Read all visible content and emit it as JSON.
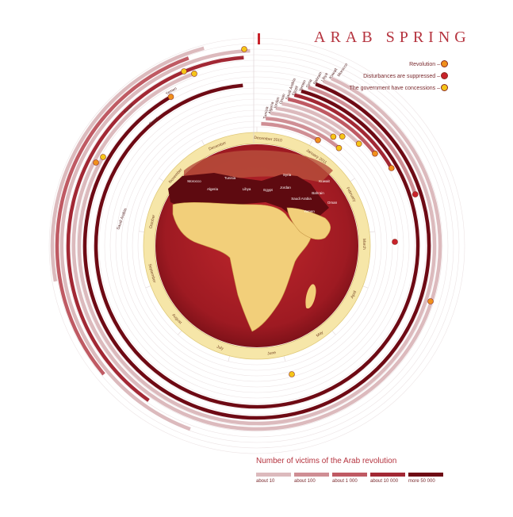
{
  "title": "ARAB SPRING",
  "legend": {
    "revolution": "Revolution –",
    "suppressed": "Disturbances are suppressed –",
    "concessions": "The government have concessions –"
  },
  "outcome_colors": {
    "revolution": "#f0901c",
    "suppressed": "#c8222a",
    "concessions": "#f5c518"
  },
  "victims_scale": {
    "title": "Number of victims of the Arab revolution",
    "levels": [
      {
        "label": "about 10",
        "color": "#dcbabd"
      },
      {
        "label": "about 100",
        "color": "#cf8e94"
      },
      {
        "label": "about 1 000",
        "color": "#bf5a63"
      },
      {
        "label": "about 10 000",
        "color": "#a22834"
      },
      {
        "label": "more 50 000",
        "color": "#6e0a14"
      }
    ]
  },
  "months": [
    "December 2010",
    "January 2011",
    "February",
    "March",
    "April",
    "May",
    "June",
    "July",
    "August",
    "September",
    "October",
    "November",
    "December"
  ],
  "countries": [
    {
      "name": "Tunisia",
      "level": 1,
      "outcome": "revolution"
    },
    {
      "name": "Algeria",
      "level": 1,
      "outcome": "concessions"
    },
    {
      "name": "Jordan",
      "level": 0,
      "outcome": "concessions"
    },
    {
      "name": "Oman",
      "level": 0,
      "outcome": "concessions"
    },
    {
      "name": "Saudi Arabia",
      "level": 0,
      "outcome": "concessions"
    },
    {
      "name": "Egypt",
      "level": 2,
      "outcome": "revolution"
    },
    {
      "name": "Yemen",
      "level": 3,
      "outcome": "revolution"
    },
    {
      "name": "Syria",
      "level": 4,
      "outcome": ""
    },
    {
      "name": "Bahrain",
      "level": 1,
      "outcome": "suppressed"
    },
    {
      "name": "Libya",
      "level": 4,
      "outcome": "revolution"
    },
    {
      "name": "Kuwait",
      "level": 0,
      "outcome": "concessions"
    },
    {
      "name": "Morocco",
      "level": 0,
      "outcome": "concessions"
    }
  ],
  "outer_labels": [
    "Saudi Arabia",
    "Kuwait",
    "Yemen",
    "Egypt"
  ],
  "map_labels": [
    "Morocco",
    "Algeria",
    "Tunisia",
    "Libya",
    "Egypt",
    "Syria",
    "Jordan",
    "Saudi Arabia",
    "Kuwait",
    "Bahrain",
    "Oman",
    "Yemen"
  ]
}
